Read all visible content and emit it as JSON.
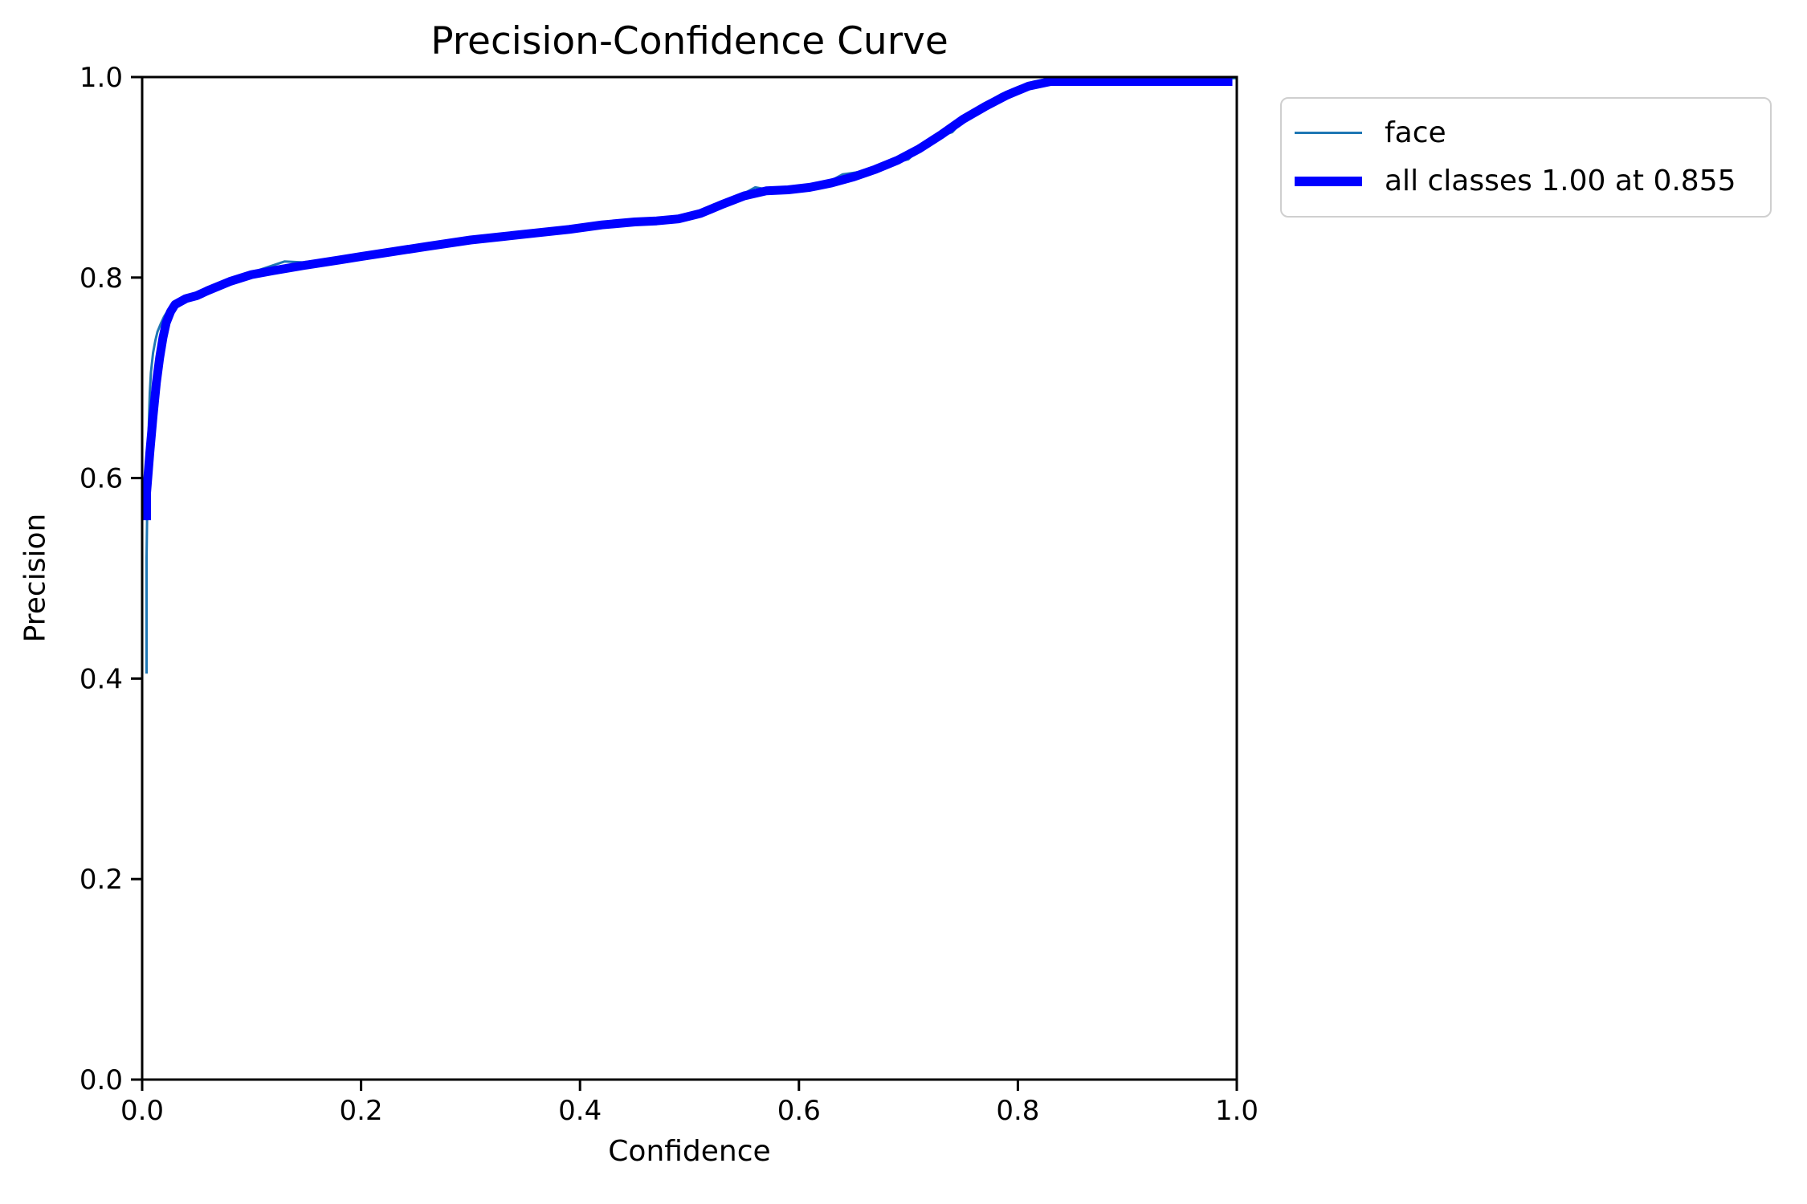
{
  "figure": {
    "background": "#ffffff",
    "axis_color": "#000000",
    "text_color": "#000000",
    "legend_border_color": "#cfcfcf"
  },
  "chart_data": {
    "type": "line",
    "title": "Precision-Confidence Curve",
    "xlabel": "Confidence",
    "ylabel": "Precision",
    "xlim": [
      0.0,
      1.0
    ],
    "ylim": [
      0.0,
      1.0
    ],
    "x_tick_labels": [
      "0.0",
      "0.2",
      "0.4",
      "0.6",
      "0.8",
      "1.0"
    ],
    "y_tick_labels": [
      "0.0",
      "0.2",
      "0.4",
      "0.6",
      "0.8",
      "1.0"
    ],
    "grid": false,
    "legend": {
      "position": "outside-upper-right",
      "entries": [
        {
          "label": "face",
          "color": "#1f77b4",
          "linewidth": 3
        },
        {
          "label": "all classes 1.00 at 0.855",
          "color": "#0000ff",
          "linewidth": 12
        }
      ]
    },
    "series": [
      {
        "name": "face",
        "color": "#1f77b4",
        "linewidth": 3,
        "x": [
          0.004,
          0.004,
          0.005,
          0.006,
          0.007,
          0.008,
          0.01,
          0.012,
          0.014,
          0.017,
          0.02,
          0.024,
          0.028,
          0.032,
          0.05,
          0.08,
          0.1,
          0.13,
          0.16,
          0.19,
          0.22,
          0.25,
          0.28,
          0.31,
          0.34,
          0.37,
          0.4,
          0.42,
          0.44,
          0.46,
          0.48,
          0.5,
          0.52,
          0.54,
          0.56,
          0.58,
          0.6,
          0.62,
          0.64,
          0.66,
          0.67,
          0.68,
          0.7,
          0.72,
          0.74,
          0.755,
          0.77,
          0.785,
          0.8,
          0.815,
          0.83,
          0.855,
          0.9,
          1.0
        ],
        "y": [
          0.405,
          0.52,
          0.6,
          0.65,
          0.685,
          0.705,
          0.725,
          0.737,
          0.746,
          0.754,
          0.761,
          0.768,
          0.773,
          0.777,
          0.785,
          0.799,
          0.805,
          0.816,
          0.8145,
          0.82,
          0.8215,
          0.831,
          0.834,
          0.8375,
          0.84,
          0.846,
          0.85,
          0.8525,
          0.8545,
          0.856,
          0.858,
          0.861,
          0.869,
          0.878,
          0.89,
          0.886,
          0.889,
          0.891,
          0.903,
          0.906,
          0.905,
          0.9125,
          0.918,
          0.938,
          0.945,
          0.963,
          0.9735,
          0.983,
          0.99,
          0.9955,
          0.9995,
          1.0,
          1.0,
          1.0
        ]
      },
      {
        "name": "all classes 1.00 at 0.855",
        "color": "#0000ff",
        "linewidth": 11,
        "x": [
          0.002,
          0.004,
          0.007,
          0.01,
          0.013,
          0.016,
          0.019,
          0.022,
          0.026,
          0.03,
          0.04,
          0.05,
          0.06,
          0.08,
          0.1,
          0.12,
          0.15,
          0.18,
          0.2,
          0.23,
          0.26,
          0.3,
          0.33,
          0.36,
          0.39,
          0.42,
          0.45,
          0.47,
          0.49,
          0.51,
          0.53,
          0.55,
          0.57,
          0.59,
          0.61,
          0.63,
          0.65,
          0.67,
          0.69,
          0.71,
          0.73,
          0.75,
          0.77,
          0.79,
          0.81,
          0.83,
          0.855,
          0.9,
          1.0
        ],
        "y": [
          0.558,
          0.585,
          0.625,
          0.662,
          0.695,
          0.72,
          0.74,
          0.755,
          0.766,
          0.773,
          0.779,
          0.782,
          0.787,
          0.796,
          0.803,
          0.807,
          0.8125,
          0.8175,
          0.821,
          0.826,
          0.831,
          0.8375,
          0.841,
          0.8445,
          0.848,
          0.8525,
          0.8555,
          0.8565,
          0.8585,
          0.864,
          0.873,
          0.8815,
          0.8865,
          0.8875,
          0.89,
          0.8945,
          0.9005,
          0.908,
          0.917,
          0.9285,
          0.9425,
          0.958,
          0.9705,
          0.982,
          0.991,
          0.9965,
          1.0,
          1.0,
          1.0
        ]
      }
    ],
    "best_value_annotation": {
      "value": "1.00",
      "at_confidence": "0.855"
    }
  }
}
